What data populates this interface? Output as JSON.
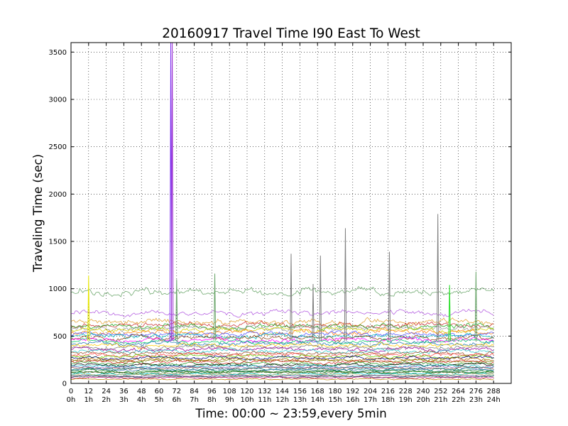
{
  "chart_data": {
    "type": "line",
    "title": "20160917 Travel Time I90 East To West",
    "xlabel": "Time: 00:00 ~ 23:59,every 5min",
    "ylabel": "Traveling Time (sec)",
    "xlim": [
      0,
      300
    ],
    "ylim": [
      0,
      3600
    ],
    "grid": true,
    "x_ticks": [
      {
        "v": 0,
        "label": "0",
        "sub": "0h"
      },
      {
        "v": 12,
        "label": "12",
        "sub": "1h"
      },
      {
        "v": 24,
        "label": "24",
        "sub": "2h"
      },
      {
        "v": 36,
        "label": "36",
        "sub": "3h"
      },
      {
        "v": 48,
        "label": "48",
        "sub": "4h"
      },
      {
        "v": 60,
        "label": "60",
        "sub": "5h"
      },
      {
        "v": 72,
        "label": "72",
        "sub": "6h"
      },
      {
        "v": 84,
        "label": "84",
        "sub": "7h"
      },
      {
        "v": 96,
        "label": "96",
        "sub": "8h"
      },
      {
        "v": 108,
        "label": "108",
        "sub": "9h"
      },
      {
        "v": 120,
        "label": "120",
        "sub": "10h"
      },
      {
        "v": 132,
        "label": "132",
        "sub": "11h"
      },
      {
        "v": 144,
        "label": "144",
        "sub": "12h"
      },
      {
        "v": 156,
        "label": "156",
        "sub": "13h"
      },
      {
        "v": 168,
        "label": "168",
        "sub": "14h"
      },
      {
        "v": 180,
        "label": "180",
        "sub": "15h"
      },
      {
        "v": 192,
        "label": "192",
        "sub": "16h"
      },
      {
        "v": 204,
        "label": "204",
        "sub": "17h"
      },
      {
        "v": 216,
        "label": "216",
        "sub": "18h"
      },
      {
        "v": 228,
        "label": "228",
        "sub": "19h"
      },
      {
        "v": 240,
        "label": "240",
        "sub": "20h"
      },
      {
        "v": 252,
        "label": "252",
        "sub": "21h"
      },
      {
        "v": 264,
        "label": "264",
        "sub": "22h"
      },
      {
        "v": 276,
        "label": "276",
        "sub": "23h"
      },
      {
        "v": 288,
        "label": "288",
        "sub": "24h"
      }
    ],
    "y_ticks": [
      {
        "v": 0,
        "label": "0"
      },
      {
        "v": 500,
        "label": "500"
      },
      {
        "v": 1000,
        "label": "1000"
      },
      {
        "v": 1500,
        "label": "1500"
      },
      {
        "v": 2000,
        "label": "2000"
      },
      {
        "v": 2500,
        "label": "2500"
      },
      {
        "v": 3000,
        "label": "3000"
      },
      {
        "v": 3500,
        "label": "3500"
      }
    ],
    "x_range_points": [
      0,
      288
    ],
    "series": [
      {
        "color": "#6aa56a",
        "base": 960,
        "amp": 45
      },
      {
        "color": "#b35ce0",
        "base": 740,
        "amp": 35
      },
      {
        "color": "#e0a030",
        "base": 650,
        "amp": 40
      },
      {
        "color": "#cc3333",
        "base": 620,
        "amp": 35
      },
      {
        "color": "#22aa22",
        "base": 600,
        "amp": 35
      },
      {
        "color": "#999999",
        "base": 580,
        "amp": 40
      },
      {
        "color": "#d4d400",
        "base": 560,
        "amp": 30
      },
      {
        "color": "#ff7f0e",
        "base": 540,
        "amp": 35
      },
      {
        "color": "#5555ff",
        "base": 520,
        "amp": 30
      },
      {
        "color": "#00bcbc",
        "base": 500,
        "amp": 30
      },
      {
        "color": "#8b4513",
        "base": 480,
        "amp": 30
      },
      {
        "color": "#ff00ff",
        "base": 460,
        "amp": 30
      },
      {
        "color": "#00cc66",
        "base": 440,
        "amp": 28
      },
      {
        "color": "#1f77b4",
        "base": 420,
        "amp": 28
      },
      {
        "color": "#ffcc00",
        "base": 400,
        "amp": 28
      },
      {
        "color": "#7f7f7f",
        "base": 380,
        "amp": 26
      },
      {
        "color": "#990099",
        "base": 360,
        "amp": 26
      },
      {
        "color": "#33cccc",
        "base": 340,
        "amp": 26
      },
      {
        "color": "#a0522d",
        "base": 320,
        "amp": 24
      },
      {
        "color": "#ff4444",
        "base": 300,
        "amp": 24
      },
      {
        "color": "#66cc00",
        "base": 285,
        "amp": 22
      },
      {
        "color": "#000080",
        "base": 270,
        "amp": 22
      },
      {
        "color": "#aa6600",
        "base": 255,
        "amp": 22
      },
      {
        "color": "#808000",
        "base": 240,
        "amp": 20
      },
      {
        "color": "#d62728",
        "base": 225,
        "amp": 20
      },
      {
        "color": "#2ca02c",
        "base": 210,
        "amp": 20
      },
      {
        "color": "#000000",
        "base": 195,
        "amp": 18
      },
      {
        "color": "#17becf",
        "base": 180,
        "amp": 18
      },
      {
        "color": "#9467bd",
        "base": 170,
        "amp": 16
      },
      {
        "color": "#8c564b",
        "base": 160,
        "amp": 16
      },
      {
        "color": "#008080",
        "base": 150,
        "amp": 16
      },
      {
        "color": "#4682b4",
        "base": 140,
        "amp": 15
      },
      {
        "color": "#228b22",
        "base": 130,
        "amp": 15
      },
      {
        "color": "#006400",
        "base": 120,
        "amp": 14
      },
      {
        "color": "#556b2f",
        "base": 110,
        "amp": 14
      },
      {
        "color": "#00ced1",
        "base": 100,
        "amp": 12
      },
      {
        "color": "#bdb76b",
        "base": 90,
        "amp": 12
      },
      {
        "color": "#483d8b",
        "base": 80,
        "amp": 10
      },
      {
        "color": "#2f4f4f",
        "base": 70,
        "amp": 10
      },
      {
        "color": "#c71585",
        "base": 60,
        "amp": 10
      },
      {
        "color": "#b8860b",
        "base": 45,
        "amp": 8
      }
    ],
    "spikes": [
      {
        "x": 68,
        "y": 3600,
        "color": "#7b2ff0"
      },
      {
        "x": 69,
        "y": 3600,
        "color": "#9b30d0"
      },
      {
        "x": 72,
        "y": 1100,
        "color": "#6aa56a"
      },
      {
        "x": 98,
        "y": 1160,
        "color": "#6aa56a"
      },
      {
        "x": 150,
        "y": 1370,
        "color": "#808080"
      },
      {
        "x": 165,
        "y": 1050,
        "color": "#808080"
      },
      {
        "x": 170,
        "y": 1350,
        "color": "#808080"
      },
      {
        "x": 187,
        "y": 1640,
        "color": "#808080"
      },
      {
        "x": 217,
        "y": 1390,
        "color": "#808080"
      },
      {
        "x": 250,
        "y": 1790,
        "color": "#808080"
      },
      {
        "x": 12,
        "y": 1140,
        "color": "#e6e600"
      },
      {
        "x": 258,
        "y": 1040,
        "color": "#22dd22"
      },
      {
        "x": 276,
        "y": 1180,
        "color": "#6aa56a"
      }
    ]
  }
}
